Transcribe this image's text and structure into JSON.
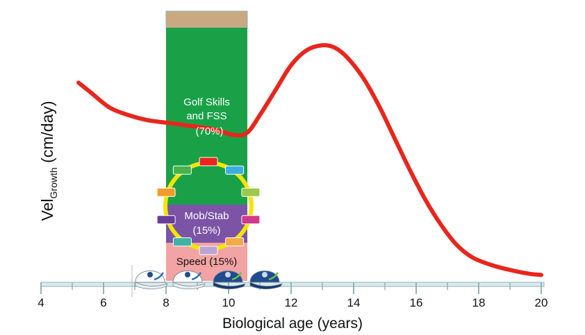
{
  "chart_data": {
    "type": "line",
    "xlabel": "Biological age (years)",
    "ylabel_main": "Vel",
    "ylabel_sub": "Growth",
    "ylabel_unit": " (cm/day)",
    "x_ticks": [
      4,
      6,
      8,
      10,
      12,
      14,
      16,
      18,
      20
    ],
    "xlim": [
      4,
      20
    ],
    "grid": false,
    "series": [
      {
        "color": "#e8261c",
        "x": [
          5.2,
          5.6,
          6.2,
          6.8,
          7.4,
          8.0,
          8.6,
          9.2,
          9.6,
          10.2,
          10.6,
          11.0,
          11.5,
          12.0,
          12.5,
          13.0,
          13.4,
          13.8,
          14.3,
          14.8,
          15.3,
          15.8,
          16.3,
          16.8,
          17.3,
          17.8,
          18.4,
          19.0,
          19.6,
          20.0
        ],
        "y": [
          0.78,
          0.74,
          0.68,
          0.65,
          0.63,
          0.62,
          0.61,
          0.6,
          0.59,
          0.57,
          0.58,
          0.65,
          0.75,
          0.85,
          0.91,
          0.93,
          0.92,
          0.88,
          0.8,
          0.69,
          0.56,
          0.43,
          0.31,
          0.21,
          0.13,
          0.08,
          0.05,
          0.03,
          0.015,
          0.01
        ]
      }
    ],
    "stack": {
      "x_range": [
        8.0,
        10.6
      ],
      "segments": [
        {
          "name": "Golf Skills and FSS",
          "percent": "70%",
          "color": "#1aa148"
        },
        {
          "name": "Mob/Stab",
          "percent": "15%",
          "color": "#7b54a6"
        },
        {
          "name": "Speed",
          "percent": "15%",
          "color": "#f2a3a3"
        }
      ],
      "top_color": "#c9a882"
    },
    "annotations": {
      "golf_line1": "Golf Skills",
      "golf_line2": "and FSS",
      "golf_line3": "(70%)",
      "mob_line1": "Mob/Stab",
      "mob_line2": "(15%)",
      "speed": "Speed (15%)"
    },
    "cycle": {
      "ring_color": "#f2e600",
      "block_colors": [
        "#e8261c",
        "#3aaee0",
        "#9cc94a",
        "#d03a8c",
        "#f4a94b",
        "#b9a4d4",
        "#3fb2a5",
        "#6a3d98",
        "#f49b2a",
        "#48b34a"
      ]
    },
    "caps": {
      "icons": [
        "cap-icon",
        "cap-icon",
        "cap-icon",
        "cap-icon"
      ],
      "colors": [
        "#ffffff",
        "#ffffff",
        "#1f4b8f",
        "#1f4b8f"
      ]
    }
  }
}
